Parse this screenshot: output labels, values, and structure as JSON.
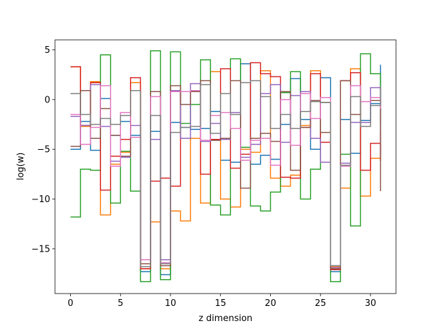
{
  "chart_data": {
    "type": "line",
    "drawstyle": "steps-post",
    "title": "",
    "xlabel": "z dimension",
    "ylabel": "log(w)",
    "xlim": [
      -1.55,
      32.55
    ],
    "ylim": [
      -19.5,
      6
    ],
    "xticks": [
      0,
      5,
      10,
      15,
      20,
      25,
      30
    ],
    "yticks": [
      5,
      0,
      -5,
      -10,
      -15
    ],
    "ytick_labels": [
      "5",
      "0",
      "−5",
      "−10",
      "−15"
    ],
    "grid": false,
    "legend": "none",
    "x": [
      0,
      1,
      2,
      3,
      4,
      5,
      6,
      7,
      8,
      9,
      10,
      11,
      12,
      13,
      14,
      15,
      16,
      17,
      18,
      19,
      20,
      21,
      22,
      23,
      24,
      25,
      26,
      27,
      28,
      29,
      30,
      31
    ],
    "series": [
      {
        "color": "#1f77b4",
        "values": [
          -5.0,
          -2.2,
          -5.1,
          0.1,
          -3.6,
          -2.2,
          -3.6,
          -17.3,
          -3.2,
          -17.6,
          -2.3,
          -2.8,
          -3.0,
          -2.9,
          -1.2,
          -6.1,
          -6.3,
          3.6,
          -6.5,
          -5.6,
          -6.0,
          -2.5,
          2.1,
          -2.0,
          -5.0,
          2.2,
          -17.3,
          -2.0,
          -5.4,
          -2.1,
          -0.4,
          3.5
        ]
      },
      {
        "color": "#ff7f0e",
        "values": [
          3.3,
          -2.7,
          1.8,
          -11.6,
          -6.5,
          -5.3,
          1.7,
          -17.0,
          -12.3,
          -17.0,
          -11.2,
          -12.2,
          -3.9,
          -10.4,
          2.8,
          -10.0,
          -10.8,
          -5.0,
          -5.3,
          2.9,
          -7.9,
          -8.7,
          -7.6,
          -2.6,
          2.9,
          -0.3,
          -16.8,
          -8.9,
          3.1,
          -9.7,
          -5.9,
          -3.2
        ]
      },
      {
        "color": "#2ca02c",
        "values": [
          -11.8,
          -7.0,
          -7.1,
          4.5,
          -10.4,
          -5.2,
          -9.2,
          -18.3,
          4.9,
          -18.1,
          4.8,
          -2.4,
          -0.5,
          4.0,
          -10.6,
          -11.6,
          4.1,
          -4.8,
          -10.7,
          -11.2,
          -9.3,
          0.7,
          2.8,
          -10.0,
          -7.0,
          -0.3,
          -18.3,
          -5.5,
          -12.7,
          4.6,
          2.6,
          -2.5
        ]
      },
      {
        "color": "#d62728",
        "values": [
          3.3,
          -2.6,
          1.7,
          -9.1,
          -5.7,
          -4.0,
          2.2,
          -17.0,
          -8.2,
          -7.9,
          -8.7,
          0.8,
          0.8,
          -7.5,
          -4.0,
          3.1,
          -6.9,
          -5.5,
          3.7,
          2.6,
          2.3,
          -7.8,
          -7.9,
          -2.8,
          2.6,
          -4.3,
          -17.1,
          1.9,
          2.7,
          -7.1,
          -4.4,
          -6.2
        ]
      },
      {
        "color": "#9467bd",
        "values": [
          -1.7,
          -2.6,
          1.5,
          -2.7,
          -6.2,
          -5.8,
          -2.6,
          -16.1,
          -4.0,
          -16.1,
          0.9,
          -3.9,
          1.6,
          -4.2,
          -2.4,
          -4.0,
          -1.3,
          -5.8,
          -4.5,
          0.6,
          1.5,
          -4.3,
          0.4,
          0.8,
          -3.9,
          -6.3,
          -16.9,
          -6.4,
          -2.3,
          -2.3,
          1.2,
          -5.5
        ]
      },
      {
        "color": "#8c564b",
        "values": [
          -4.7,
          0.9,
          -3.9,
          -0.9,
          -3.6,
          -5.7,
          0.9,
          -16.5,
          0.8,
          -16.7,
          1.4,
          -0.5,
          0.8,
          1.9,
          -4.1,
          -3.9,
          1.9,
          -8.9,
          -3.9,
          -3.4,
          -4.2,
          0.8,
          -7.1,
          -2.8,
          -0.1,
          -3.3,
          -17.0,
          1.9,
          -1.5,
          -0.2,
          -0.1,
          -9.2
        ]
      },
      {
        "color": "#e377c2",
        "values": [
          -1.5,
          -4.5,
          -2.8,
          1.4,
          -6.7,
          -1.3,
          -3.8,
          -16.1,
          0.3,
          -16.4,
          0.8,
          0.8,
          0.9,
          -4.1,
          -1.6,
          -1.3,
          -2.9,
          -6.1,
          -4.1,
          -3.9,
          -6.6,
          0.0,
          -4.6,
          0.6,
          -1.9,
          0.2,
          -16.7,
          -6.7,
          1.4,
          -0.2,
          0.2,
          -0.9
        ]
      },
      {
        "color": "#7f7f7f",
        "values": [
          0.6,
          -1.5,
          -2.5,
          -1.9,
          -2.5,
          -1.6,
          0.9,
          -16.8,
          -1.6,
          -16.5,
          -3.3,
          -2.8,
          -2.7,
          1.5,
          -3.4,
          0.6,
          -1.5,
          1.7,
          1.9,
          0.3,
          -2.9,
          -1.5,
          -2.9,
          -1.2,
          -0.2,
          -0.3,
          -16.7,
          -6.6,
          0.3,
          -2.7,
          -0.6,
          1.3
        ]
      }
    ]
  }
}
